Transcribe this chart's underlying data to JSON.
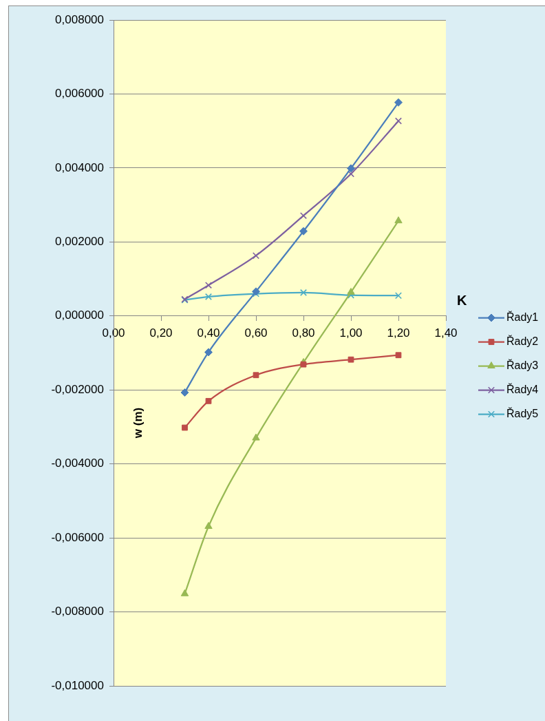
{
  "chart_data": {
    "type": "line",
    "xlabel": "K",
    "ylabel": "w (m)",
    "x": [
      0.3,
      0.4,
      0.6,
      0.8,
      1.0,
      1.2
    ],
    "series": [
      {
        "name": "Řady1",
        "color": "#4a7ebb",
        "marker": "diamond",
        "values": [
          -0.00207,
          -0.00098,
          0.00066,
          0.00229,
          0.00399,
          0.00577
        ]
      },
      {
        "name": "Řady2",
        "color": "#be4b48",
        "marker": "square",
        "values": [
          -0.00302,
          -0.0023,
          -0.0016,
          -0.00131,
          -0.00118,
          -0.00106
        ]
      },
      {
        "name": "Řady3",
        "color": "#98b954",
        "marker": "triangle",
        "values": [
          -0.00751,
          -0.00569,
          -0.0033,
          -0.00126,
          0.00064,
          0.00257
        ]
      },
      {
        "name": "Řady4",
        "color": "#7d60a0",
        "marker": "cross",
        "values": [
          0.00045,
          0.00083,
          0.00163,
          0.00271,
          0.00384,
          0.00527
        ]
      },
      {
        "name": "Řady5",
        "color": "#4bacc6",
        "marker": "cross",
        "values": [
          0.00043,
          0.00052,
          0.0006,
          0.00063,
          0.00056,
          0.00055
        ]
      }
    ],
    "xlim": [
      0,
      1.4
    ],
    "xticks": [
      {
        "value": 0,
        "label": "0,00"
      },
      {
        "value": 0.2,
        "label": "0,20"
      },
      {
        "value": 0.4,
        "label": "0,40"
      },
      {
        "value": 0.6,
        "label": "0,60"
      },
      {
        "value": 0.8,
        "label": "0,80"
      },
      {
        "value": 1.0,
        "label": "1,00"
      },
      {
        "value": 1.2,
        "label": "1,20"
      },
      {
        "value": 1.4,
        "label": "1,40"
      }
    ],
    "ylim": [
      -0.01,
      0.008
    ],
    "yticks": [
      {
        "value": -0.01,
        "label": "-0,010000"
      },
      {
        "value": -0.008,
        "label": "-0,008000"
      },
      {
        "value": -0.006,
        "label": "-0,006000"
      },
      {
        "value": -0.004,
        "label": "-0,004000"
      },
      {
        "value": -0.002,
        "label": "-0,002000"
      },
      {
        "value": 0,
        "label": "0,000000"
      },
      {
        "value": 0.002,
        "label": "0,002000"
      },
      {
        "value": 0.004,
        "label": "0,004000"
      },
      {
        "value": 0.006,
        "label": "0,006000"
      },
      {
        "value": 0.008,
        "label": "0,008000"
      }
    ],
    "grid": "y",
    "legend": "right",
    "line_style": "solid"
  }
}
